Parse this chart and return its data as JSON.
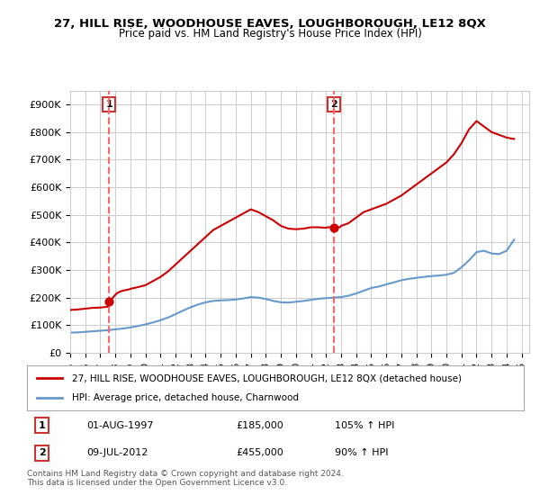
{
  "title": "27, HILL RISE, WOODHOUSE EAVES, LOUGHBOROUGH, LE12 8QX",
  "subtitle": "Price paid vs. HM Land Registry's House Price Index (HPI)",
  "ylabel": "",
  "xlim_start": 1995.0,
  "xlim_end": 2025.5,
  "ylim": [
    0,
    950000
  ],
  "yticks": [
    0,
    100000,
    200000,
    300000,
    400000,
    500000,
    600000,
    700000,
    800000,
    900000
  ],
  "ytick_labels": [
    "£0",
    "£100K",
    "£200K",
    "£300K",
    "£400K",
    "£500K",
    "£600K",
    "£700K",
    "£800K",
    "£900K"
  ],
  "xtick_years": [
    1995,
    1996,
    1997,
    1998,
    1999,
    2000,
    2001,
    2002,
    2003,
    2004,
    2005,
    2006,
    2007,
    2008,
    2009,
    2010,
    2011,
    2012,
    2013,
    2014,
    2015,
    2016,
    2017,
    2018,
    2019,
    2020,
    2021,
    2022,
    2023,
    2024,
    2025
  ],
  "red_line_color": "#cc0000",
  "blue_line_color": "#6699cc",
  "dashed_line_color": "#ff6666",
  "point1_x": 1997.58,
  "point1_y": 185000,
  "point2_x": 2012.52,
  "point2_y": 455000,
  "legend_red": "27, HILL RISE, WOODHOUSE EAVES, LOUGHBOROUGH, LE12 8QX (detached house)",
  "legend_blue": "HPI: Average price, detached house, Charnwood",
  "table_row1": [
    "1",
    "01-AUG-1997",
    "£185,000",
    "105% ↑ HPI"
  ],
  "table_row2": [
    "2",
    "09-JUL-2012",
    "£455,000",
    "90% ↑ HPI"
  ],
  "footer": "Contains HM Land Registry data © Crown copyright and database right 2024.\nThis data is licensed under the Open Government Licence v3.0.",
  "bg_color": "#ffffff",
  "grid_color": "#cccccc",
  "red_x": [
    1995.0,
    1995.083,
    1995.167,
    1995.25,
    1995.333,
    1995.417,
    1995.5,
    1995.583,
    1995.667,
    1995.75,
    1995.833,
    1995.917,
    1996.0,
    1996.083,
    1996.167,
    1996.25,
    1996.333,
    1996.417,
    1996.5,
    1996.583,
    1996.667,
    1996.75,
    1996.833,
    1996.917,
    1997.0,
    1997.083,
    1997.167,
    1997.25,
    1997.333,
    1997.417,
    1997.5,
    1997.583,
    1997.667,
    1997.75,
    1997.833,
    1997.917,
    1998.0,
    1998.083,
    1998.167,
    1998.25,
    1998.333,
    1998.417,
    1998.5,
    1998.583,
    1998.667,
    1998.75,
    1998.833,
    1998.917,
    1999.0,
    1999.5,
    2000.0,
    2000.5,
    2001.0,
    2001.5,
    2002.0,
    2002.5,
    2003.0,
    2003.5,
    2004.0,
    2004.5,
    2005.0,
    2005.5,
    2006.0,
    2006.5,
    2007.0,
    2007.5,
    2008.0,
    2008.5,
    2009.0,
    2009.5,
    2010.0,
    2010.5,
    2011.0,
    2011.5,
    2012.0,
    2012.083,
    2012.167,
    2012.25,
    2012.333,
    2012.417,
    2012.5,
    2012.583,
    2012.667,
    2012.75,
    2012.833,
    2012.917,
    2013.0,
    2013.5,
    2014.0,
    2014.5,
    2015.0,
    2015.5,
    2016.0,
    2016.5,
    2017.0,
    2017.5,
    2018.0,
    2018.5,
    2019.0,
    2019.5,
    2020.0,
    2020.5,
    2021.0,
    2021.5,
    2022.0,
    2022.5,
    2023.0,
    2023.5,
    2024.0,
    2024.5
  ],
  "red_y": [
    155000,
    155500,
    156000,
    155800,
    156200,
    156500,
    157000,
    157500,
    158000,
    158500,
    159000,
    159500,
    160000,
    160500,
    161000,
    161500,
    162000,
    162500,
    163000,
    163000,
    163000,
    163200,
    163500,
    163800,
    164000,
    164500,
    165000,
    165500,
    166000,
    166500,
    167000,
    185000,
    190000,
    195000,
    200000,
    205000,
    210000,
    215000,
    218000,
    220000,
    222000,
    224000,
    225000,
    226000,
    227000,
    228000,
    229000,
    230000,
    232000,
    238000,
    245000,
    260000,
    275000,
    295000,
    320000,
    345000,
    370000,
    395000,
    420000,
    445000,
    460000,
    475000,
    490000,
    505000,
    520000,
    510000,
    495000,
    480000,
    460000,
    450000,
    448000,
    450000,
    455000,
    455000,
    453000,
    455000,
    455000,
    455000,
    455000,
    455000,
    455000,
    455000,
    455000,
    455000,
    455000,
    455000,
    460000,
    470000,
    490000,
    510000,
    520000,
    530000,
    540000,
    555000,
    570000,
    590000,
    610000,
    630000,
    650000,
    670000,
    690000,
    720000,
    760000,
    810000,
    840000,
    820000,
    800000,
    790000,
    780000,
    775000
  ],
  "blue_x": [
    1995.0,
    1995.5,
    1996.0,
    1996.5,
    1997.0,
    1997.5,
    1998.0,
    1998.5,
    1999.0,
    1999.5,
    2000.0,
    2000.5,
    2001.0,
    2001.5,
    2002.0,
    2002.5,
    2003.0,
    2003.5,
    2004.0,
    2004.5,
    2005.0,
    2005.5,
    2006.0,
    2006.5,
    2007.0,
    2007.5,
    2008.0,
    2008.5,
    2009.0,
    2009.5,
    2010.0,
    2010.5,
    2011.0,
    2011.5,
    2012.0,
    2012.5,
    2013.0,
    2013.5,
    2014.0,
    2014.5,
    2015.0,
    2015.5,
    2016.0,
    2016.5,
    2017.0,
    2017.5,
    2018.0,
    2018.5,
    2019.0,
    2019.5,
    2020.0,
    2020.5,
    2021.0,
    2021.5,
    2022.0,
    2022.5,
    2023.0,
    2023.5,
    2024.0,
    2024.5
  ],
  "blue_y": [
    73000,
    74000,
    76000,
    78000,
    80000,
    82000,
    85000,
    88000,
    92000,
    97000,
    103000,
    110000,
    118000,
    128000,
    140000,
    153000,
    165000,
    175000,
    183000,
    188000,
    190000,
    191000,
    193000,
    197000,
    202000,
    200000,
    195000,
    188000,
    183000,
    182000,
    185000,
    188000,
    192000,
    196000,
    198000,
    200000,
    202000,
    207000,
    215000,
    225000,
    235000,
    240000,
    248000,
    255000,
    263000,
    268000,
    272000,
    275000,
    278000,
    280000,
    283000,
    290000,
    310000,
    335000,
    365000,
    370000,
    360000,
    358000,
    370000,
    410000
  ]
}
